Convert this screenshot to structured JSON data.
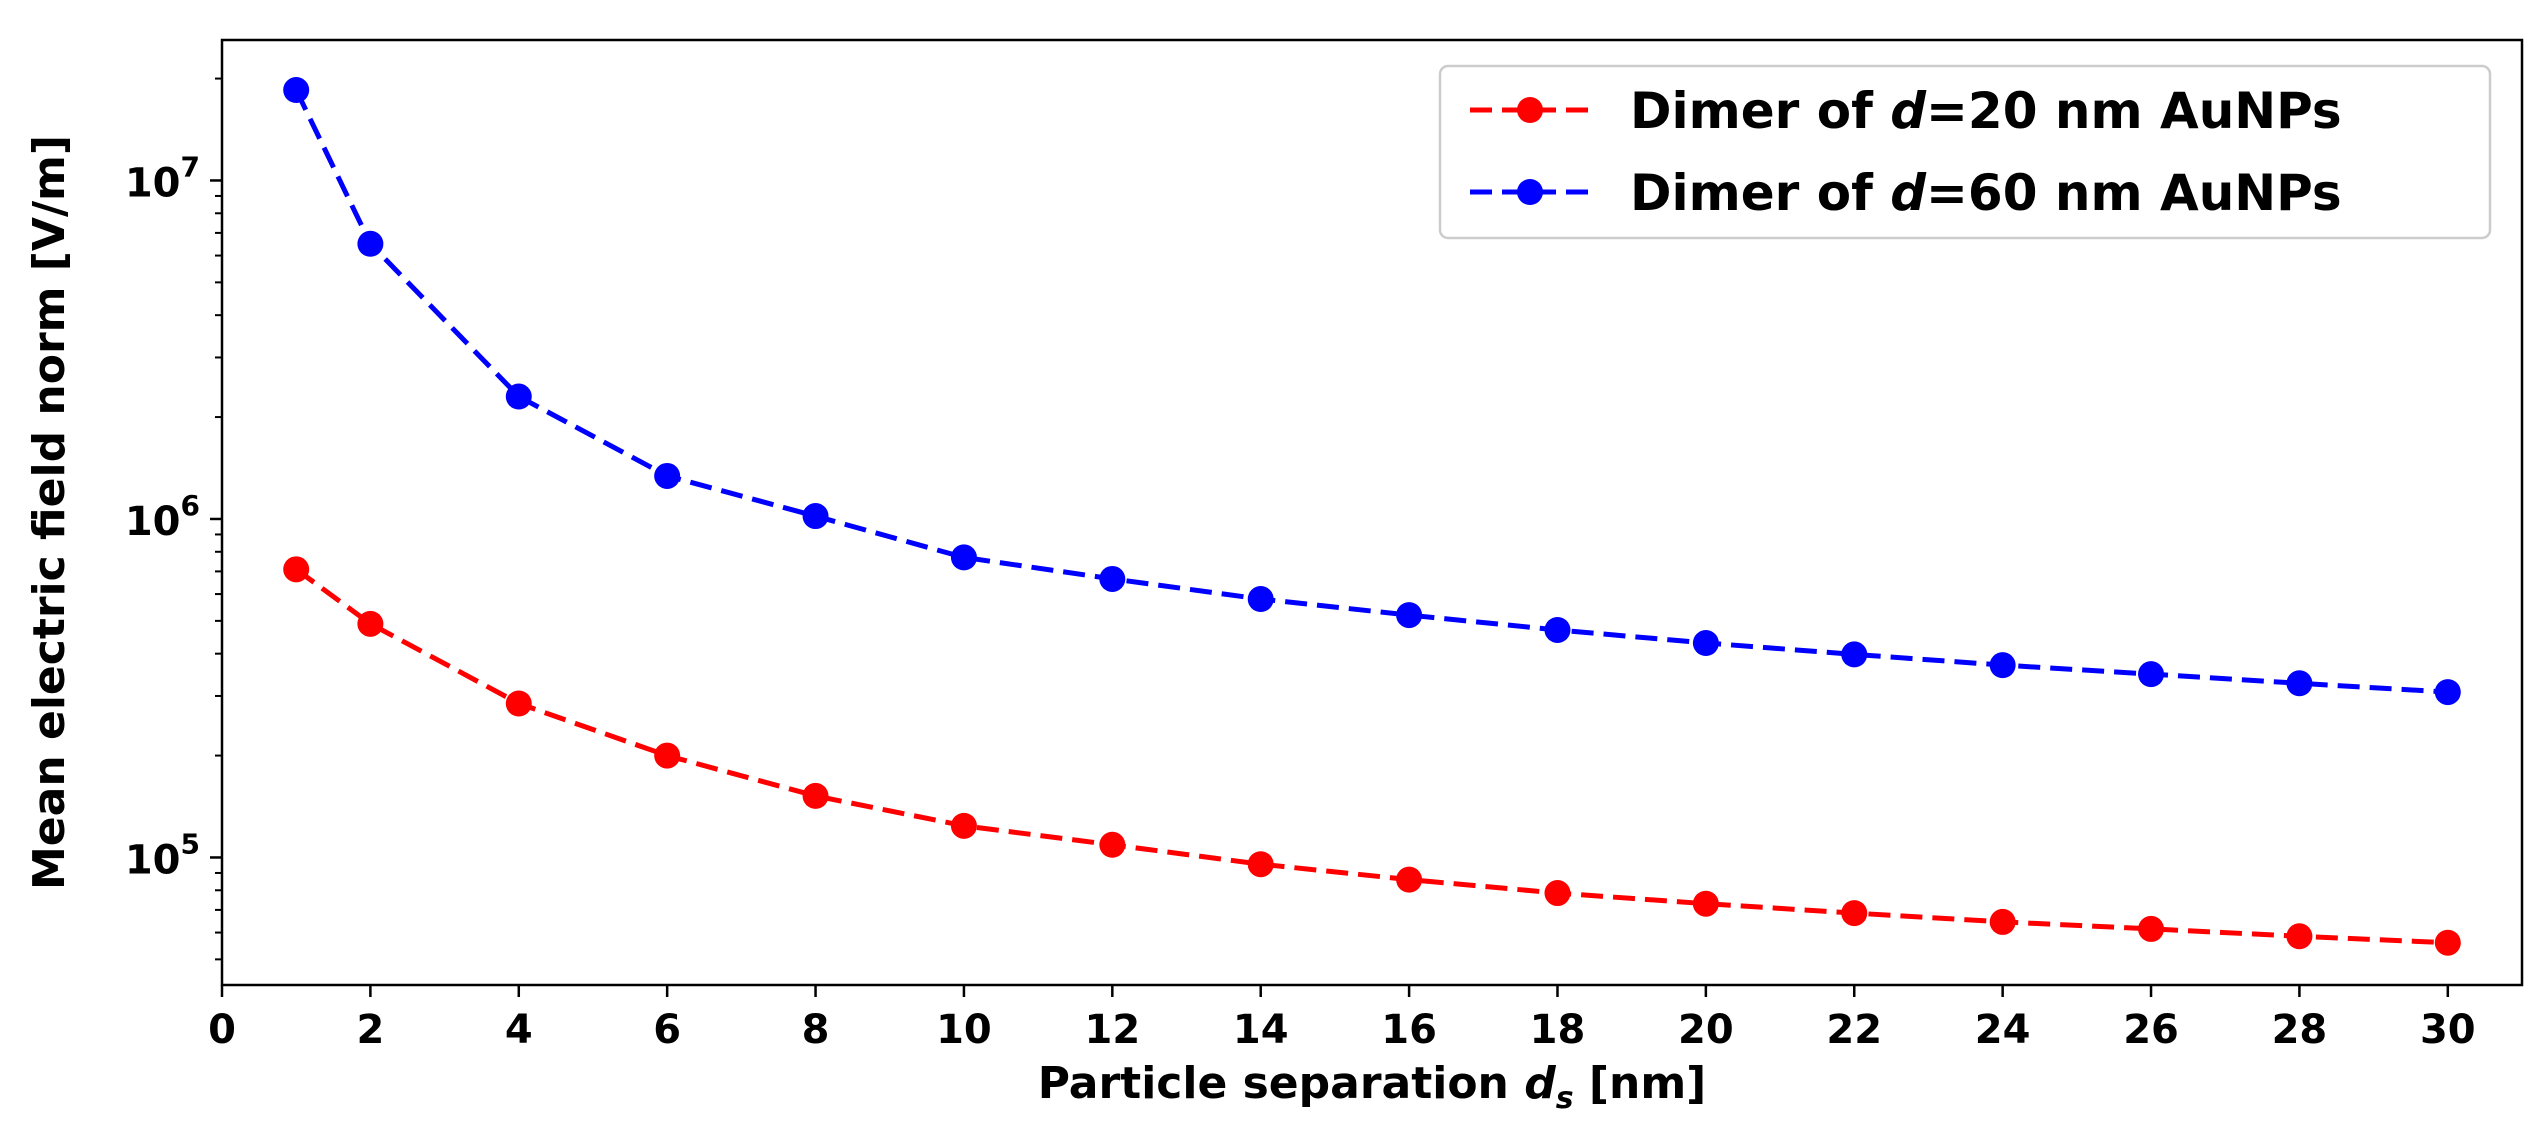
{
  "chart_data": {
    "type": "line",
    "xscale": "linear",
    "yscale": "log",
    "x": [
      1,
      2,
      4,
      6,
      8,
      10,
      12,
      14,
      16,
      18,
      20,
      22,
      24,
      26,
      28,
      30
    ],
    "series": [
      {
        "name": "Dimer of d=20 nm AuNPs",
        "label_prefix": "Dimer of ",
        "label_var": "d",
        "label_suffix": "=20 nm AuNPs",
        "color": "#ff0000",
        "linestyle": "dashed",
        "marker": "circle",
        "values": [
          710000,
          490000,
          285000,
          200000,
          152000,
          124000,
          109000,
          95500,
          86000,
          78500,
          73000,
          68500,
          64500,
          61500,
          58500,
          56000
        ]
      },
      {
        "name": "Dimer of d=60 nm AuNPs",
        "label_prefix": "Dimer of ",
        "label_var": "d",
        "label_suffix": "=60 nm AuNPs",
        "color": "#0000ff",
        "linestyle": "dashed",
        "marker": "circle",
        "values": [
          18500000,
          6500000,
          2300000,
          1340000,
          1020000,
          770000,
          665000,
          580000,
          520000,
          470000,
          430000,
          398000,
          370000,
          348000,
          327000,
          308000
        ]
      }
    ],
    "title": "",
    "xlabel": "Particle separation",
    "xlabel_var": "d",
    "xlabel_sub": "s",
    "xlabel_unit": " [nm]",
    "ylabel": "Mean electric field norm [V/m]",
    "xlim": [
      0,
      31
    ],
    "ylim": [
      42000,
      26000000
    ],
    "xticks": [
      0,
      2,
      4,
      6,
      8,
      10,
      12,
      14,
      16,
      18,
      20,
      22,
      24,
      26,
      28,
      30
    ],
    "yticks": [
      {
        "value": 100000,
        "base": "10",
        "exp": "5"
      },
      {
        "value": 1000000,
        "base": "10",
        "exp": "6"
      },
      {
        "value": 10000000,
        "base": "10",
        "exp": "7"
      }
    ],
    "grid": false,
    "legend_position": "top-right"
  }
}
